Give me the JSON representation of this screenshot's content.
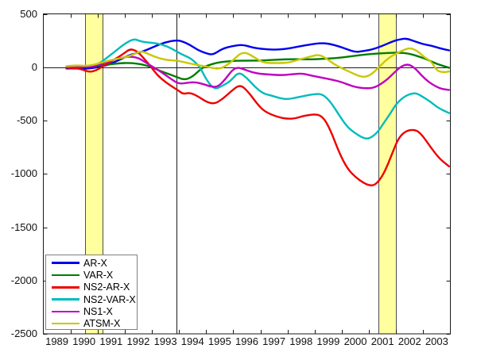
{
  "figure": {
    "background": "#ffffff"
  },
  "chart_data": {
    "type": "line",
    "title": "",
    "xlabel": "",
    "ylabel": "",
    "xlim": [
      1989,
      2004
    ],
    "ylim": [
      -2500,
      500
    ],
    "grid": false,
    "axis_color": "#1a1a1a",
    "zero_line_value": 0,
    "vertical_line_x": 1993.92,
    "x_tick_mark_years": [
      1990,
      1991,
      1992,
      1993,
      1994,
      1995,
      1996,
      1997,
      1998,
      1999,
      2000,
      2001,
      2002,
      2003
    ],
    "x_tick_labels": [
      "1989",
      "1990",
      "1991",
      "1992",
      "1993",
      "1994",
      "1995",
      "1996",
      "1997",
      "1998",
      "1999",
      "2000",
      "2001",
      "2002",
      "2003"
    ],
    "y_ticks": [
      {
        "value": 500,
        "label": "500"
      },
      {
        "value": 0,
        "label": "0"
      },
      {
        "value": -500,
        "label": "-500"
      },
      {
        "value": -1000,
        "label": "-1000"
      },
      {
        "value": -1500,
        "label": "-1500"
      },
      {
        "value": -2000,
        "label": "-2000"
      },
      {
        "value": -2500,
        "label": "-2500"
      }
    ],
    "recession_bands": [
      {
        "from": 1990.53,
        "to": 1991.17
      },
      {
        "from": 2001.35,
        "to": 2001.99
      }
    ],
    "band_fill_color": "#ffff9e",
    "band_edge_color": "#4d4d4d",
    "legend_position": "bottom-left",
    "series": [
      {
        "name": "AR-X",
        "color": "#0000ee",
        "points": [
          [
            1989.85,
            -12
          ],
          [
            1990.1,
            -10
          ],
          [
            1990.4,
            -15
          ],
          [
            1990.7,
            -12
          ],
          [
            1991.0,
            0
          ],
          [
            1991.3,
            15
          ],
          [
            1991.6,
            45
          ],
          [
            1991.9,
            80
          ],
          [
            1992.2,
            118
          ],
          [
            1992.5,
            135
          ],
          [
            1992.8,
            160
          ],
          [
            1993.1,
            195
          ],
          [
            1993.5,
            235
          ],
          [
            1993.9,
            253
          ],
          [
            1994.1,
            245
          ],
          [
            1994.4,
            210
          ],
          [
            1994.7,
            160
          ],
          [
            1995.0,
            130
          ],
          [
            1995.25,
            115
          ],
          [
            1995.6,
            175
          ],
          [
            1996.0,
            200
          ],
          [
            1996.35,
            212
          ],
          [
            1996.7,
            185
          ],
          [
            1997.0,
            172
          ],
          [
            1997.5,
            163
          ],
          [
            1997.9,
            170
          ],
          [
            1998.3,
            188
          ],
          [
            1998.8,
            212
          ],
          [
            1999.2,
            226
          ],
          [
            1999.5,
            222
          ],
          [
            1999.9,
            195
          ],
          [
            2000.2,
            168
          ],
          [
            2000.5,
            140
          ],
          [
            2000.8,
            152
          ],
          [
            2001.1,
            165
          ],
          [
            2001.5,
            200
          ],
          [
            2001.9,
            245
          ],
          [
            2002.2,
            265
          ],
          [
            2002.4,
            268
          ],
          [
            2002.7,
            242
          ],
          [
            2003.0,
            215
          ],
          [
            2003.3,
            202
          ],
          [
            2003.6,
            178
          ],
          [
            2003.95,
            158
          ]
        ]
      },
      {
        "name": "VAR-X",
        "color": "#007d00",
        "points": [
          [
            1989.85,
            -2
          ],
          [
            1990.2,
            2
          ],
          [
            1990.6,
            5
          ],
          [
            1991.0,
            15
          ],
          [
            1991.4,
            25
          ],
          [
            1991.8,
            38
          ],
          [
            1992.2,
            40
          ],
          [
            1992.6,
            30
          ],
          [
            1993.0,
            0
          ],
          [
            1993.3,
            -35
          ],
          [
            1993.6,
            -62
          ],
          [
            1993.9,
            -90
          ],
          [
            1994.2,
            -120
          ],
          [
            1994.5,
            -90
          ],
          [
            1994.85,
            -5
          ],
          [
            1995.1,
            20
          ],
          [
            1995.4,
            42
          ],
          [
            1995.75,
            55
          ],
          [
            1996.1,
            60
          ],
          [
            1996.5,
            62
          ],
          [
            1996.9,
            62
          ],
          [
            1997.3,
            66
          ],
          [
            1997.7,
            72
          ],
          [
            1998.1,
            75
          ],
          [
            1998.5,
            74
          ],
          [
            1998.9,
            74
          ],
          [
            1999.3,
            78
          ],
          [
            1999.7,
            84
          ],
          [
            2000.1,
            94
          ],
          [
            2000.5,
            108
          ],
          [
            2000.9,
            120
          ],
          [
            2001.3,
            128
          ],
          [
            2001.7,
            133
          ],
          [
            2002.1,
            137
          ],
          [
            2002.45,
            130
          ],
          [
            2002.8,
            103
          ],
          [
            2003.1,
            78
          ],
          [
            2003.5,
            30
          ],
          [
            2003.95,
            -5
          ]
        ]
      },
      {
        "name": "NS2-AR-X",
        "color": "#ee0000",
        "points": [
          [
            1989.85,
            -5
          ],
          [
            1990.2,
            -8
          ],
          [
            1990.45,
            -22
          ],
          [
            1990.7,
            -46
          ],
          [
            1990.95,
            -30
          ],
          [
            1991.2,
            10
          ],
          [
            1991.5,
            55
          ],
          [
            1991.8,
            100
          ],
          [
            1992.0,
            135
          ],
          [
            1992.2,
            172
          ],
          [
            1992.45,
            152
          ],
          [
            1992.7,
            85
          ],
          [
            1992.95,
            10
          ],
          [
            1993.2,
            -75
          ],
          [
            1993.5,
            -140
          ],
          [
            1993.8,
            -190
          ],
          [
            1994.0,
            -222
          ],
          [
            1994.15,
            -252
          ],
          [
            1994.4,
            -238
          ],
          [
            1994.7,
            -272
          ],
          [
            1995.0,
            -325
          ],
          [
            1995.3,
            -345
          ],
          [
            1995.6,
            -300
          ],
          [
            1995.9,
            -230
          ],
          [
            1996.25,
            -160
          ],
          [
            1996.55,
            -230
          ],
          [
            1996.9,
            -350
          ],
          [
            1997.15,
            -415
          ],
          [
            1997.6,
            -465
          ],
          [
            1998.0,
            -485
          ],
          [
            1998.3,
            -480
          ],
          [
            1998.6,
            -455
          ],
          [
            1999.1,
            -438
          ],
          [
            1999.35,
            -480
          ],
          [
            1999.6,
            -600
          ],
          [
            1999.9,
            -800
          ],
          [
            2000.2,
            -950
          ],
          [
            2000.5,
            -1030
          ],
          [
            2000.8,
            -1085
          ],
          [
            2001.05,
            -1112
          ],
          [
            2001.25,
            -1100
          ],
          [
            2001.5,
            -1020
          ],
          [
            2001.7,
            -910
          ],
          [
            2001.9,
            -780
          ],
          [
            2002.1,
            -660
          ],
          [
            2002.35,
            -600
          ],
          [
            2002.6,
            -585
          ],
          [
            2002.8,
            -598
          ],
          [
            2003.0,
            -650
          ],
          [
            2003.3,
            -760
          ],
          [
            2003.6,
            -858
          ],
          [
            2003.95,
            -930
          ]
        ]
      },
      {
        "name": "NS2-VAR-X",
        "color": "#00bcbc",
        "points": [
          [
            1989.85,
            8
          ],
          [
            1990.2,
            12
          ],
          [
            1990.5,
            8
          ],
          [
            1990.8,
            12
          ],
          [
            1991.1,
            40
          ],
          [
            1991.4,
            100
          ],
          [
            1991.7,
            160
          ],
          [
            1992.0,
            220
          ],
          [
            1992.25,
            255
          ],
          [
            1992.4,
            262
          ],
          [
            1992.6,
            240
          ],
          [
            1992.9,
            232
          ],
          [
            1993.2,
            222
          ],
          [
            1993.55,
            198
          ],
          [
            1993.9,
            150
          ],
          [
            1994.1,
            120
          ],
          [
            1994.45,
            82
          ],
          [
            1994.78,
            0
          ],
          [
            1995.0,
            -115
          ],
          [
            1995.3,
            -210
          ],
          [
            1995.6,
            -175
          ],
          [
            1995.9,
            -130
          ],
          [
            1996.2,
            -42
          ],
          [
            1996.5,
            -100
          ],
          [
            1996.8,
            -185
          ],
          [
            1997.1,
            -247
          ],
          [
            1997.4,
            -265
          ],
          [
            1997.7,
            -290
          ],
          [
            1998.0,
            -302
          ],
          [
            1998.4,
            -280
          ],
          [
            1999.0,
            -250
          ],
          [
            1999.3,
            -253
          ],
          [
            1999.6,
            -330
          ],
          [
            1999.9,
            -450
          ],
          [
            2000.2,
            -560
          ],
          [
            2000.5,
            -622
          ],
          [
            2000.8,
            -665
          ],
          [
            2001.0,
            -672
          ],
          [
            2001.3,
            -618
          ],
          [
            2001.55,
            -520
          ],
          [
            2001.8,
            -430
          ],
          [
            2002.0,
            -345
          ],
          [
            2002.3,
            -275
          ],
          [
            2002.55,
            -248
          ],
          [
            2002.75,
            -243
          ],
          [
            2003.0,
            -280
          ],
          [
            2003.3,
            -330
          ],
          [
            2003.55,
            -382
          ],
          [
            2003.95,
            -430
          ]
        ]
      },
      {
        "name": "NS1-X",
        "color": "#c000c0",
        "points": [
          [
            1989.85,
            0
          ],
          [
            1990.2,
            4
          ],
          [
            1990.5,
            0
          ],
          [
            1990.8,
            6
          ],
          [
            1991.1,
            25
          ],
          [
            1991.4,
            55
          ],
          [
            1991.7,
            78
          ],
          [
            1992.0,
            95
          ],
          [
            1992.2,
            100
          ],
          [
            1992.5,
            88
          ],
          [
            1992.8,
            40
          ],
          [
            1993.0,
            8
          ],
          [
            1993.35,
            -45
          ],
          [
            1993.7,
            -110
          ],
          [
            1994.0,
            -158
          ],
          [
            1994.3,
            -145
          ],
          [
            1994.6,
            -140
          ],
          [
            1994.9,
            -158
          ],
          [
            1995.2,
            -185
          ],
          [
            1995.45,
            -182
          ],
          [
            1995.7,
            -115
          ],
          [
            1995.95,
            -30
          ],
          [
            1996.15,
            0
          ],
          [
            1996.4,
            -20
          ],
          [
            1996.7,
            -48
          ],
          [
            1997.0,
            -62
          ],
          [
            1997.4,
            -70
          ],
          [
            1997.8,
            -75
          ],
          [
            1998.2,
            -65
          ],
          [
            1998.55,
            -58
          ],
          [
            1998.9,
            -80
          ],
          [
            1999.3,
            -100
          ],
          [
            1999.7,
            -120
          ],
          [
            2000.0,
            -140
          ],
          [
            2000.3,
            -170
          ],
          [
            2000.6,
            -192
          ],
          [
            2000.9,
            -198
          ],
          [
            2001.15,
            -195
          ],
          [
            2001.4,
            -165
          ],
          [
            2001.7,
            -110
          ],
          [
            2001.95,
            -45
          ],
          [
            2002.2,
            10
          ],
          [
            2002.45,
            30
          ],
          [
            2002.7,
            -10
          ],
          [
            2002.95,
            -80
          ],
          [
            2003.2,
            -140
          ],
          [
            2003.5,
            -185
          ],
          [
            2003.7,
            -205
          ],
          [
            2003.95,
            -213
          ]
        ]
      },
      {
        "name": "ATSM-X",
        "color": "#c8c800",
        "points": [
          [
            1989.85,
            10
          ],
          [
            1990.2,
            18
          ],
          [
            1990.5,
            12
          ],
          [
            1990.8,
            18
          ],
          [
            1991.1,
            40
          ],
          [
            1991.4,
            60
          ],
          [
            1991.7,
            78
          ],
          [
            1992.0,
            92
          ],
          [
            1992.3,
            115
          ],
          [
            1992.6,
            155
          ],
          [
            1992.9,
            120
          ],
          [
            1993.25,
            85
          ],
          [
            1993.6,
            65
          ],
          [
            1993.95,
            62
          ],
          [
            1994.3,
            40
          ],
          [
            1994.6,
            25
          ],
          [
            1995.1,
            0
          ],
          [
            1995.5,
            -20
          ],
          [
            1995.9,
            40
          ],
          [
            1996.35,
            155
          ],
          [
            1996.8,
            90
          ],
          [
            1997.1,
            42
          ],
          [
            1997.5,
            38
          ],
          [
            1998.0,
            40
          ],
          [
            1998.4,
            70
          ],
          [
            1998.8,
            97
          ],
          [
            1999.15,
            120
          ],
          [
            1999.45,
            80
          ],
          [
            1999.7,
            30
          ],
          [
            2000.0,
            -10
          ],
          [
            2000.3,
            -45
          ],
          [
            2000.6,
            -80
          ],
          [
            2000.85,
            -95
          ],
          [
            2001.1,
            -65
          ],
          [
            2001.35,
            -5
          ],
          [
            2001.6,
            60
          ],
          [
            2001.85,
            108
          ],
          [
            2002.1,
            140
          ],
          [
            2002.35,
            170
          ],
          [
            2002.55,
            180
          ],
          [
            2002.8,
            150
          ],
          [
            2003.05,
            90
          ],
          [
            2003.3,
            55
          ],
          [
            2003.5,
            -35
          ],
          [
            2003.75,
            -48
          ],
          [
            2003.95,
            -40
          ]
        ]
      }
    ]
  }
}
